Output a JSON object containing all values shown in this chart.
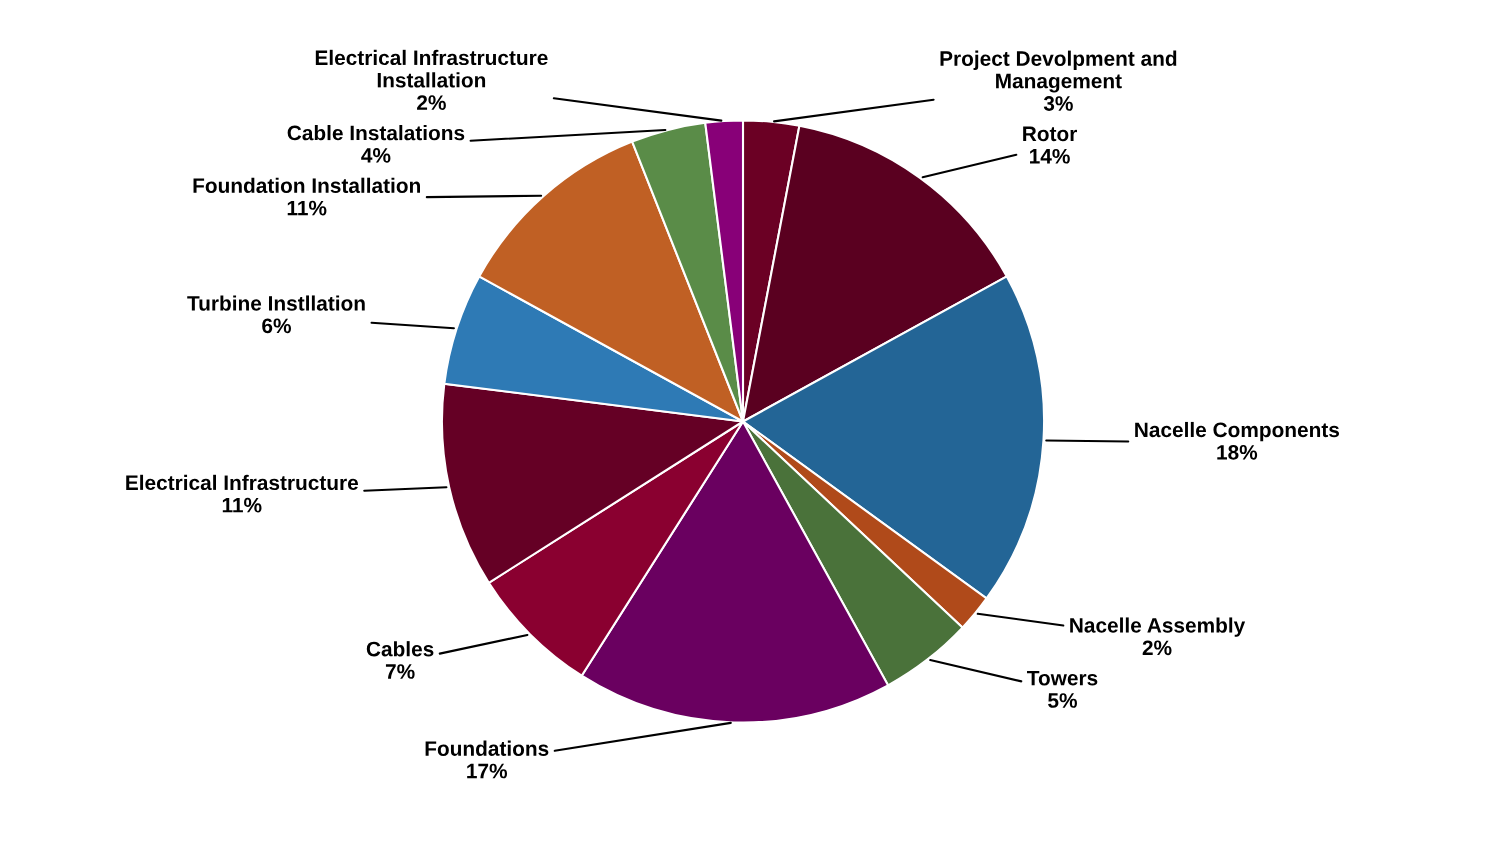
{
  "chart_data": {
    "type": "pie",
    "categories": [
      "Project Devolpment and Management",
      "Rotor",
      "Nacelle Components",
      "Nacelle Assembly",
      "Towers",
      "Foundations",
      "Cables",
      "Electrical Infrastructure",
      "Turbine Instllation",
      "Foundation Installation",
      "Cable Instalations",
      "Electrical Infrastructure Installation"
    ],
    "values": [
      3,
      14,
      18,
      2,
      5,
      17,
      7,
      11,
      6,
      11,
      4,
      2
    ],
    "value_labels": [
      "3%",
      "14%",
      "18%",
      "2%",
      "5%",
      "17%",
      "7%",
      "11%",
      "6%",
      "11%",
      "4%",
      "2%"
    ],
    "colors": [
      "#6b0024",
      "#5a0020",
      "#236596",
      "#b04a1a",
      "#4a723a",
      "#6a0060",
      "#8a0030",
      "#650025",
      "#2e7ab5",
      "#c06024",
      "#5a8c48",
      "#880078"
    ],
    "legend": false
  }
}
